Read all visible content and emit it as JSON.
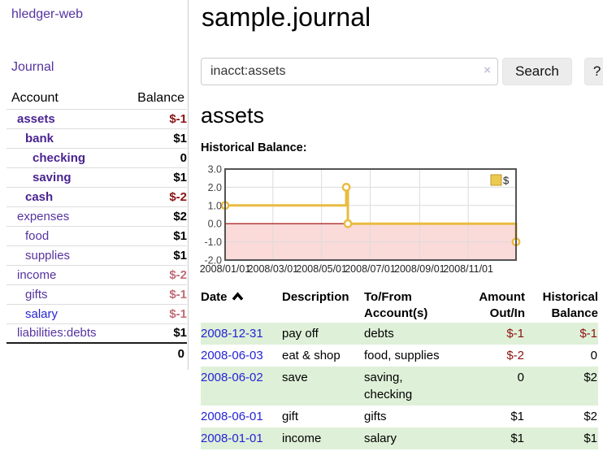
{
  "app": {
    "brand": "hledger-web"
  },
  "sidebar": {
    "journal_link": "Journal",
    "accounts": {
      "col_account": "Account",
      "col_balance": "Balance",
      "rows": [
        {
          "name": "assets",
          "balance": "$-1",
          "indent": 1,
          "bold": true,
          "neg": "strong"
        },
        {
          "name": "bank",
          "balance": "$1",
          "indent": 2,
          "bold": true,
          "neg": "none"
        },
        {
          "name": "checking",
          "balance": "0",
          "indent": 3,
          "bold": true,
          "neg": "none"
        },
        {
          "name": "saving",
          "balance": "$1",
          "indent": 3,
          "bold": true,
          "neg": "none"
        },
        {
          "name": "cash",
          "balance": "$-2",
          "indent": 2,
          "bold": true,
          "neg": "strong"
        },
        {
          "name": "expenses",
          "balance": "$2",
          "indent": 1,
          "bold": false,
          "neg": "none"
        },
        {
          "name": "food",
          "balance": "$1",
          "indent": 2,
          "bold": false,
          "neg": "none"
        },
        {
          "name": "supplies",
          "balance": "$1",
          "indent": 2,
          "bold": false,
          "neg": "none"
        },
        {
          "name": "income",
          "balance": "$-2",
          "indent": 1,
          "bold": false,
          "neg": "light"
        },
        {
          "name": "gifts",
          "balance": "$-1",
          "indent": 2,
          "bold": false,
          "neg": "light"
        },
        {
          "name": "salary",
          "balance": "$-1",
          "indent": 2,
          "bold": false,
          "neg": "light",
          "alt_link": true
        },
        {
          "name": "liabilities:debts",
          "balance": "$1",
          "indent": 1,
          "bold": false,
          "neg": "none"
        }
      ],
      "total": "0"
    }
  },
  "main": {
    "title": "sample.journal",
    "search": {
      "value": "inacct:assets",
      "clear": "×",
      "button": "Search",
      "help": "?"
    },
    "heading": "assets",
    "chart_label": "Historical Balance:"
  },
  "chart_data": {
    "type": "line",
    "step": true,
    "title": "Historical Balance",
    "series": [
      {
        "name": "$",
        "points": [
          {
            "date": "2008-01-01",
            "value": 1
          },
          {
            "date": "2008-06-01",
            "value": 2
          },
          {
            "date": "2008-06-03",
            "value": 0
          },
          {
            "date": "2008-12-31",
            "value": -1
          }
        ]
      }
    ],
    "ylim": [
      -2,
      3
    ],
    "yticks": [
      "3.0",
      "2.0",
      "1.0",
      "0.0",
      "-1.0",
      "-2.0"
    ],
    "xticks": [
      {
        "label": "2008/01/01",
        "date": "2008-01-01"
      },
      {
        "label": "2008/03/01",
        "date": "2008-03-01"
      },
      {
        "label": "2008/05/01",
        "date": "2008-05-01"
      },
      {
        "label": "2008/07/01",
        "date": "2008-07-01"
      },
      {
        "label": "2008/09/01",
        "date": "2008-09-01"
      },
      {
        "label": "2008/11/01",
        "date": "2008-11-01"
      }
    ],
    "xrange": [
      "2008-01-01",
      "2008-12-31"
    ],
    "grid": true,
    "legend": {
      "label": "$",
      "position": "top-right"
    },
    "colors": {
      "line": "#e9bb40",
      "marker_fill": "#ffffff",
      "negative_fill": "#fbdada",
      "zero_line": "#a00000",
      "grid": "#dcdcdc",
      "border": "#545454",
      "legend_fill": "#ecc94f",
      "legend_border": "#c19b27"
    }
  },
  "register": {
    "headers": {
      "date": "Date",
      "description": "Description",
      "accounts": "To/From Account(s)",
      "amount": "Amount Out/In",
      "balance": "Historical Balance"
    },
    "sort_icon": "chevron-up",
    "rows": [
      {
        "date": "2008-12-31",
        "description": "pay off",
        "accounts": "debts",
        "amount": "$-1",
        "amount_neg": true,
        "balance": "$-1",
        "balance_neg": true
      },
      {
        "date": "2008-06-03",
        "description": "eat & shop",
        "accounts": "food, supplies",
        "amount": "$-2",
        "amount_neg": true,
        "balance": "0",
        "balance_neg": false
      },
      {
        "date": "2008-06-02",
        "description": "save",
        "accounts": "saving, checking",
        "amount": "0",
        "amount_neg": false,
        "balance": "$2",
        "balance_neg": false
      },
      {
        "date": "2008-06-01",
        "description": "gift",
        "accounts": "gifts",
        "amount": "$1",
        "amount_neg": false,
        "balance": "$2",
        "balance_neg": false
      },
      {
        "date": "2008-01-01",
        "description": "income",
        "accounts": "salary",
        "amount": "$1",
        "amount_neg": false,
        "balance": "$1",
        "balance_neg": false
      }
    ]
  }
}
